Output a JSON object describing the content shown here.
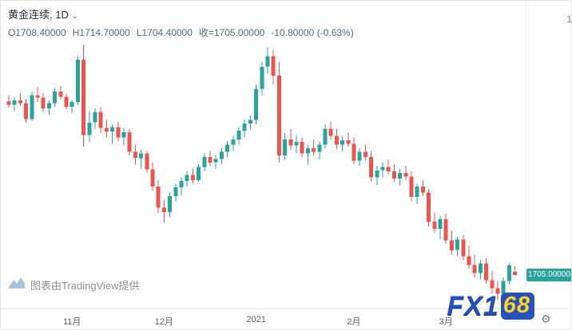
{
  "header": {
    "symbol": "黄金连续",
    "separator": ", ",
    "interval": "1D",
    "caret_icon": "⌄",
    "ohlc": {
      "open": "O1708.40000",
      "high": "H1714.70000",
      "low": "L1704.40000",
      "close": "收=1705.00000",
      "change": "-10.80000 (-0.63%)"
    }
  },
  "price_axis": {
    "last_price_label": "1705.00000",
    "partial_top_label": "1",
    "badge_color": "#26a69a"
  },
  "time_axis": {
    "gear_icon": "⚙"
  },
  "attribution": {
    "text": "图表由TradingView提供"
  },
  "branding": {
    "part1": "FX1",
    "part2": "68"
  },
  "chart_data": {
    "type": "candlestick",
    "title": "黄金连续 1D",
    "legend_position": "top-left",
    "grid": false,
    "colors": {
      "up": "#26a69a",
      "down": "#ef5350"
    },
    "last_bar": {
      "open": 1708.4,
      "high": 1714.7,
      "low": 1704.4,
      "close": 1705.0,
      "change": -10.8,
      "change_pct": -0.63
    },
    "x_tick_labels": [
      "11月",
      "12月",
      "2021",
      "2月",
      "3月"
    ],
    "x_tick_indices": [
      11,
      27,
      43,
      60,
      76
    ],
    "ylim": [
      1677,
      1965
    ],
    "candles": [
      [
        1901,
        1908,
        1894,
        1897
      ],
      [
        1897,
        1905,
        1890,
        1902
      ],
      [
        1902,
        1910,
        1896,
        1899
      ],
      [
        1899,
        1904,
        1877,
        1881
      ],
      [
        1881,
        1912,
        1879,
        1908
      ],
      [
        1908,
        1917,
        1900,
        1905
      ],
      [
        1905,
        1910,
        1889,
        1893
      ],
      [
        1893,
        1902,
        1886,
        1899
      ],
      [
        1899,
        1916,
        1895,
        1912
      ],
      [
        1912,
        1918,
        1903,
        1906
      ],
      [
        1906,
        1910,
        1892,
        1895
      ],
      [
        1895,
        1902,
        1888,
        1900
      ],
      [
        1900,
        1952,
        1897,
        1948
      ],
      [
        1948,
        1965,
        1850,
        1863
      ],
      [
        1863,
        1890,
        1855,
        1877
      ],
      [
        1877,
        1893,
        1870,
        1889
      ],
      [
        1889,
        1895,
        1865,
        1871
      ],
      [
        1871,
        1880,
        1860,
        1867
      ],
      [
        1867,
        1875,
        1853,
        1872
      ],
      [
        1872,
        1878,
        1856,
        1860
      ],
      [
        1860,
        1871,
        1851,
        1866
      ],
      [
        1866,
        1870,
        1840,
        1844
      ],
      [
        1844,
        1852,
        1830,
        1837
      ],
      [
        1837,
        1846,
        1825,
        1842
      ],
      [
        1842,
        1845,
        1820,
        1824
      ],
      [
        1824,
        1832,
        1800,
        1805
      ],
      [
        1805,
        1812,
        1775,
        1781
      ],
      [
        1781,
        1790,
        1764,
        1776
      ],
      [
        1776,
        1798,
        1770,
        1794
      ],
      [
        1794,
        1808,
        1788,
        1804
      ],
      [
        1804,
        1815,
        1795,
        1811
      ],
      [
        1811,
        1822,
        1805,
        1818
      ],
      [
        1818,
        1825,
        1808,
        1812
      ],
      [
        1812,
        1830,
        1810,
        1827
      ],
      [
        1827,
        1842,
        1822,
        1838
      ],
      [
        1838,
        1845,
        1828,
        1832
      ],
      [
        1832,
        1840,
        1825,
        1836
      ],
      [
        1836,
        1848,
        1830,
        1844
      ],
      [
        1844,
        1856,
        1838,
        1852
      ],
      [
        1852,
        1862,
        1845,
        1858
      ],
      [
        1858,
        1872,
        1852,
        1868
      ],
      [
        1868,
        1880,
        1860,
        1876
      ],
      [
        1876,
        1885,
        1870,
        1880
      ],
      [
        1880,
        1920,
        1875,
        1915
      ],
      [
        1915,
        1945,
        1908,
        1940
      ],
      [
        1940,
        1962,
        1932,
        1952
      ],
      [
        1952,
        1959,
        1920,
        1930
      ],
      [
        1930,
        1945,
        1832,
        1840
      ],
      [
        1840,
        1865,
        1835,
        1858
      ],
      [
        1858,
        1870,
        1846,
        1851
      ],
      [
        1851,
        1863,
        1842,
        1855
      ],
      [
        1855,
        1860,
        1838,
        1842
      ],
      [
        1842,
        1852,
        1830,
        1848
      ],
      [
        1848,
        1858,
        1840,
        1844
      ],
      [
        1844,
        1856,
        1836,
        1852
      ],
      [
        1852,
        1875,
        1848,
        1870
      ],
      [
        1870,
        1878,
        1858,
        1862
      ],
      [
        1862,
        1870,
        1847,
        1852
      ],
      [
        1852,
        1862,
        1845,
        1857
      ],
      [
        1857,
        1866,
        1850,
        1853
      ],
      [
        1853,
        1860,
        1830,
        1834
      ],
      [
        1834,
        1848,
        1828,
        1844
      ],
      [
        1844,
        1852,
        1834,
        1838
      ],
      [
        1838,
        1845,
        1810,
        1815
      ],
      [
        1815,
        1828,
        1806,
        1823
      ],
      [
        1823,
        1832,
        1815,
        1827
      ],
      [
        1827,
        1835,
        1818,
        1822
      ],
      [
        1822,
        1830,
        1810,
        1814
      ],
      [
        1814,
        1825,
        1806,
        1820
      ],
      [
        1820,
        1828,
        1812,
        1816
      ],
      [
        1816,
        1822,
        1788,
        1793
      ],
      [
        1793,
        1808,
        1785,
        1805
      ],
      [
        1805,
        1812,
        1794,
        1798
      ],
      [
        1798,
        1802,
        1760,
        1765
      ],
      [
        1765,
        1775,
        1752,
        1757
      ],
      [
        1757,
        1772,
        1745,
        1768
      ],
      [
        1768,
        1774,
        1740,
        1744
      ],
      [
        1744,
        1755,
        1728,
        1733
      ],
      [
        1733,
        1748,
        1726,
        1745
      ],
      [
        1745,
        1750,
        1722,
        1726
      ],
      [
        1726,
        1738,
        1712,
        1716
      ],
      [
        1716,
        1728,
        1702,
        1707
      ],
      [
        1707,
        1722,
        1700,
        1718
      ],
      [
        1718,
        1724,
        1695,
        1699
      ],
      [
        1699,
        1710,
        1684,
        1690
      ],
      [
        1690,
        1698,
        1677,
        1684
      ],
      [
        1684,
        1702,
        1680,
        1698
      ],
      [
        1698,
        1718,
        1694,
        1715.8
      ],
      [
        1708.4,
        1714.7,
        1704.4,
        1705
      ]
    ]
  }
}
